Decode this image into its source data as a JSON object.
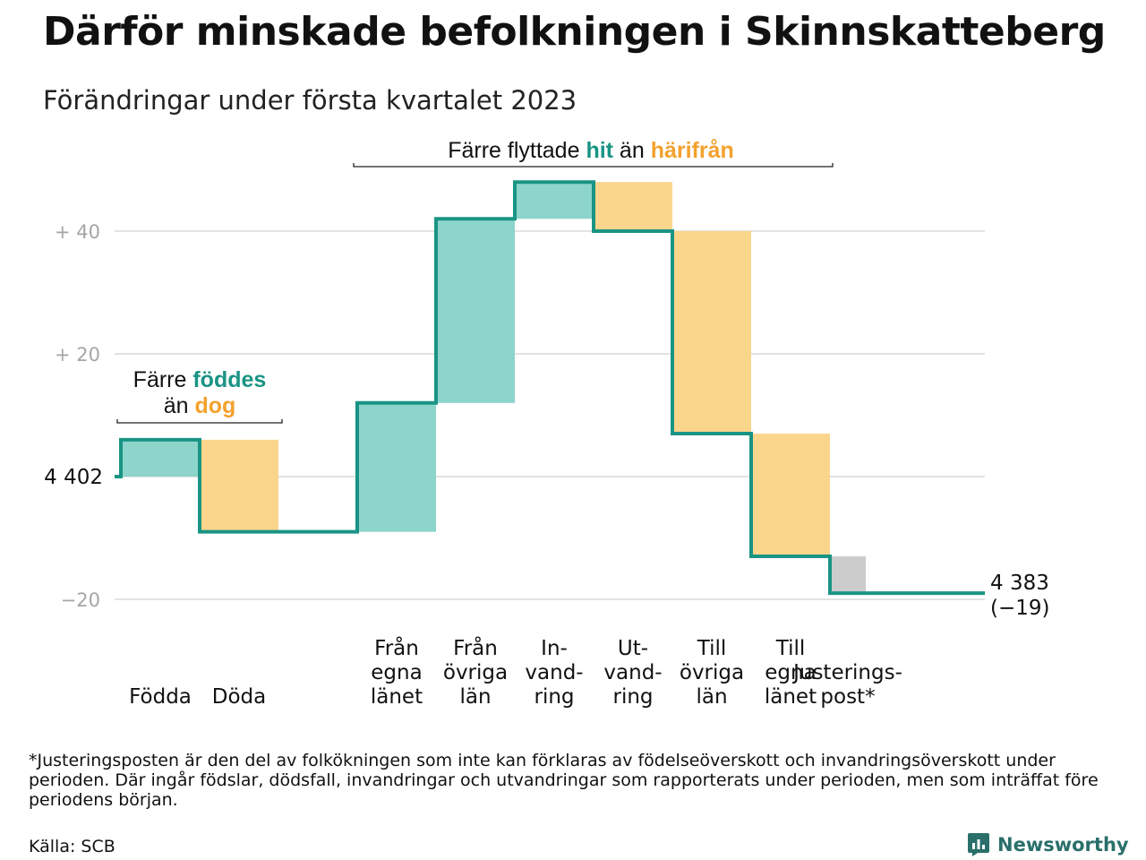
{
  "header": {
    "title": "Därför minskade befolkningen i Skinnskatteberg",
    "subtitle": "Förändringar under första kvartalet 2023"
  },
  "chart_data": {
    "type": "waterfall",
    "start": {
      "label": "4 402",
      "value": 0
    },
    "end": {
      "label": "4 383",
      "change_label": "(−19)",
      "value": -19
    },
    "y_ticks": [
      {
        "value": 40,
        "label": "+ 40"
      },
      {
        "value": 20,
        "label": "+ 20"
      },
      {
        "value": -20,
        "label": "−20"
      }
    ],
    "ylim": [
      -24,
      49
    ],
    "steps": [
      {
        "key": "fodda",
        "label": [
          "Födda"
        ],
        "change": 6,
        "kind": "in"
      },
      {
        "key": "doda",
        "label": [
          "Döda"
        ],
        "change": -15,
        "kind": "out"
      },
      {
        "key": "gap",
        "label": [],
        "change": 0,
        "kind": "none"
      },
      {
        "key": "fran-egna",
        "label": [
          "Från",
          "egna",
          "länet"
        ],
        "change": 21,
        "kind": "in"
      },
      {
        "key": "fran-ovriga",
        "label": [
          "Från",
          "övriga",
          "län"
        ],
        "change": 30,
        "kind": "in"
      },
      {
        "key": "invandring",
        "label": [
          "In-",
          "vand-",
          "ring"
        ],
        "change": 6,
        "kind": "in"
      },
      {
        "key": "utvandring",
        "label": [
          "Ut-",
          "vand-",
          "ring"
        ],
        "change": -8,
        "kind": "out"
      },
      {
        "key": "till-ovriga",
        "label": [
          "Till",
          "övriga",
          "län"
        ],
        "change": -33,
        "kind": "out"
      },
      {
        "key": "till-egna",
        "label": [
          "Till",
          "egna",
          "länet"
        ],
        "change": -20,
        "kind": "out"
      },
      {
        "key": "justering",
        "label": [
          "Justerings-",
          "post*"
        ],
        "change": -6,
        "kind": "adjust"
      }
    ],
    "annotations": [
      {
        "key": "births",
        "parts": [
          [
            {
              "text": "Färre ",
              "kind": "plain"
            },
            {
              "text": "föddes",
              "kind": "in"
            }
          ],
          [
            {
              "text": "än ",
              "kind": "plain"
            },
            {
              "text": "dog",
              "kind": "out"
            }
          ]
        ]
      },
      {
        "key": "migration",
        "parts": [
          [
            {
              "text": "Färre flyttade ",
              "kind": "plain"
            },
            {
              "text": "hit",
              "kind": "in"
            },
            {
              "text": " än ",
              "kind": "plain"
            },
            {
              "text": "härifrån",
              "kind": "out"
            }
          ]
        ]
      }
    ],
    "colors": {
      "in_fill": "#8dd4cb",
      "out_fill": "#fad68c",
      "adjust_fill": "#cccccc",
      "step_line": "#1a9484",
      "in_text": "#1a9484",
      "out_text": "#f3a12d",
      "grid": "#e2e2e2",
      "tick_text": "#a6a6a6"
    }
  },
  "footnote": "*Justeringsposten är den del av folkökningen som inte kan förklaras av födelseöverskott och invandringsöverskott under perioden. Där ingår födslar, dödsfall, invandringar och utvandringar som rapporterats under perioden, men som inträffat före periodens början.",
  "source": "Källa: SCB",
  "brand": {
    "name": "Newsworthy",
    "icon": "bar-chart-logo-icon"
  }
}
